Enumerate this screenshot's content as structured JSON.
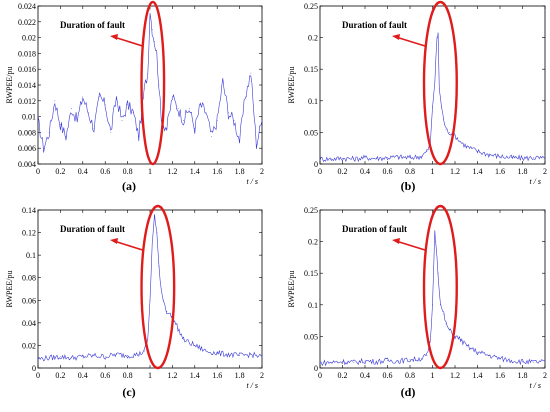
{
  "figure": {
    "panel_labels": [
      "(a)",
      "(b)",
      "(c)",
      "(d)"
    ],
    "annotation": "Duration of fault",
    "colors": {
      "series": "#3a3ad6",
      "annotation": "#e01b1b",
      "axis": "#000000",
      "background": "#ffffff"
    }
  },
  "chart_data": [
    {
      "type": "line",
      "panel": "(a)",
      "title": "",
      "ylabel": "RWPEE/pu",
      "xlabel": "t / s",
      "xlim": [
        0,
        2
      ],
      "ylim": [
        0.004,
        0.024
      ],
      "xticks": [
        "0",
        "0.2",
        "0.4",
        "0.6",
        "0.8",
        "1",
        "1.2",
        "1.4",
        "1.6",
        "1.8",
        "2"
      ],
      "yticks": [
        "0.004",
        "0.006",
        "0.008",
        "0.01",
        "0.012",
        "0.014",
        "0.016",
        "0.018",
        "0.02",
        "0.022",
        "0.024"
      ],
      "annotation": "Duration of fault",
      "annotated_interval": [
        0.96,
        1.09
      ],
      "series": [
        {
          "x": [
            0,
            0.05,
            0.1,
            0.15,
            0.2,
            0.25,
            0.3,
            0.35,
            0.4,
            0.45,
            0.5,
            0.55,
            0.6,
            0.65,
            0.7,
            0.75,
            0.8,
            0.85,
            0.9,
            0.95,
            0.98,
            1.0,
            1.02,
            1.04,
            1.06,
            1.08,
            1.1,
            1.15,
            1.2,
            1.25,
            1.3,
            1.35,
            1.4,
            1.45,
            1.5,
            1.55,
            1.6,
            1.65,
            1.7,
            1.75,
            1.8,
            1.85,
            1.9,
            1.95,
            2.0
          ],
          "y": [
            0.0095,
            0.006,
            0.008,
            0.012,
            0.009,
            0.0075,
            0.011,
            0.0095,
            0.0125,
            0.0105,
            0.0085,
            0.0125,
            0.0115,
            0.008,
            0.0125,
            0.0095,
            0.0115,
            0.0105,
            0.0075,
            0.0135,
            0.0155,
            0.0235,
            0.021,
            0.0195,
            0.018,
            0.014,
            0.0095,
            0.0085,
            0.0125,
            0.011,
            0.0095,
            0.011,
            0.0085,
            0.0115,
            0.0105,
            0.0075,
            0.0095,
            0.0145,
            0.0105,
            0.0095,
            0.007,
            0.0125,
            0.0155,
            0.0065,
            0.0095
          ]
        }
      ]
    },
    {
      "type": "line",
      "panel": "(b)",
      "title": "",
      "ylabel": "RWPEE/pu",
      "xlabel": "t / s",
      "xlim": [
        0,
        2
      ],
      "ylim": [
        0,
        0.25
      ],
      "xticks": [
        "0",
        "0.2",
        "0.4",
        "0.6",
        "0.8",
        "1",
        "1.2",
        "1.4",
        "1.6",
        "1.8",
        "2"
      ],
      "yticks": [
        "0",
        "0.05",
        "0.1",
        "0.15",
        "0.2",
        "0.25"
      ],
      "annotation": "Duration of fault",
      "annotated_interval": [
        0.96,
        1.18
      ],
      "series": [
        {
          "x": [
            0,
            0.1,
            0.2,
            0.3,
            0.4,
            0.5,
            0.6,
            0.7,
            0.8,
            0.9,
            0.95,
            0.98,
            1.0,
            1.02,
            1.04,
            1.05,
            1.06,
            1.08,
            1.1,
            1.12,
            1.15,
            1.2,
            1.25,
            1.3,
            1.4,
            1.5,
            1.6,
            1.7,
            1.8,
            1.9,
            2.0
          ],
          "y": [
            0.008,
            0.008,
            0.009,
            0.008,
            0.01,
            0.009,
            0.01,
            0.011,
            0.01,
            0.012,
            0.02,
            0.03,
            0.09,
            0.13,
            0.2,
            0.205,
            0.12,
            0.09,
            0.07,
            0.055,
            0.05,
            0.045,
            0.035,
            0.028,
            0.02,
            0.015,
            0.012,
            0.01,
            0.009,
            0.01,
            0.008
          ]
        }
      ]
    },
    {
      "type": "line",
      "panel": "(c)",
      "title": "",
      "ylabel": "RWPEE/pu",
      "xlabel": "t / s",
      "xlim": [
        0,
        2
      ],
      "ylim": [
        0,
        0.14
      ],
      "xticks": [
        "0",
        "0.2",
        "0.4",
        "0.6",
        "0.8",
        "1",
        "1.2",
        "1.4",
        "1.6",
        "1.8",
        "2"
      ],
      "yticks": [
        "0",
        "0.02",
        "0.04",
        "0.06",
        "0.08",
        "0.1",
        "0.12",
        "0.14"
      ],
      "annotation": "Duration of fault",
      "annotated_interval": [
        0.96,
        1.18
      ],
      "series": [
        {
          "x": [
            0,
            0.1,
            0.2,
            0.3,
            0.4,
            0.5,
            0.6,
            0.7,
            0.8,
            0.9,
            0.95,
            0.98,
            1.0,
            1.02,
            1.04,
            1.06,
            1.08,
            1.1,
            1.12,
            1.15,
            1.2,
            1.25,
            1.3,
            1.4,
            1.5,
            1.6,
            1.7,
            1.8,
            1.9,
            2.0
          ],
          "y": [
            0.008,
            0.009,
            0.01,
            0.009,
            0.01,
            0.011,
            0.01,
            0.012,
            0.011,
            0.012,
            0.015,
            0.025,
            0.06,
            0.11,
            0.135,
            0.12,
            0.09,
            0.07,
            0.06,
            0.05,
            0.045,
            0.035,
            0.025,
            0.02,
            0.015,
            0.013,
            0.012,
            0.011,
            0.012,
            0.01
          ]
        }
      ]
    },
    {
      "type": "line",
      "panel": "(d)",
      "title": "",
      "ylabel": "RWPEE/pu",
      "xlabel": "t / s",
      "xlim": [
        0,
        2
      ],
      "ylim": [
        0,
        0.25
      ],
      "xticks": [
        "0",
        "0.2",
        "0.4",
        "0.6",
        "0.8",
        "1",
        "1.2",
        "1.4",
        "1.6",
        "1.8",
        "2"
      ],
      "yticks": [
        "0",
        "0.05",
        "0.1",
        "0.15",
        "0.2",
        "0.25"
      ],
      "annotation": "Duration of fault",
      "annotated_interval": [
        0.96,
        1.18
      ],
      "series": [
        {
          "x": [
            0,
            0.1,
            0.2,
            0.3,
            0.4,
            0.5,
            0.6,
            0.7,
            0.8,
            0.9,
            0.95,
            0.98,
            1.0,
            1.02,
            1.03,
            1.05,
            1.07,
            1.1,
            1.12,
            1.15,
            1.2,
            1.25,
            1.3,
            1.4,
            1.5,
            1.6,
            1.7,
            1.8,
            1.9,
            2.0
          ],
          "y": [
            0.008,
            0.009,
            0.01,
            0.009,
            0.011,
            0.01,
            0.012,
            0.011,
            0.013,
            0.015,
            0.02,
            0.04,
            0.1,
            0.215,
            0.2,
            0.15,
            0.1,
            0.085,
            0.07,
            0.06,
            0.05,
            0.045,
            0.035,
            0.025,
            0.02,
            0.015,
            0.012,
            0.01,
            0.009,
            0.01
          ]
        }
      ]
    }
  ]
}
